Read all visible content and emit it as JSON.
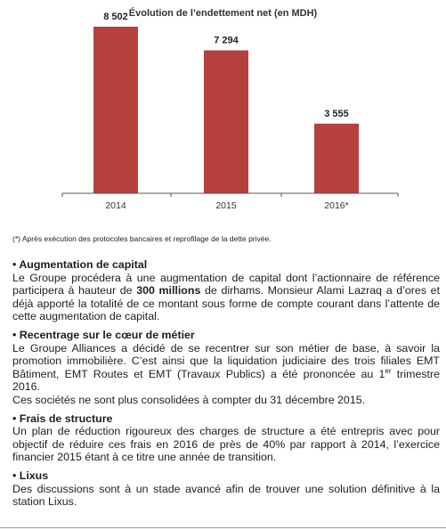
{
  "chart_data": {
    "type": "bar",
    "title": "Évolution de l’endettement net (en MDH)",
    "categories": [
      "2014",
      "2015",
      "2016*"
    ],
    "values": [
      8502,
      7294,
      3555
    ],
    "value_labels": [
      "8 502",
      "7 294",
      "3 555"
    ],
    "ylim": [
      0,
      9000
    ],
    "xlabel": "",
    "ylabel": "",
    "grid": false,
    "bar_color": "#b5403d"
  },
  "footnote": "(*) Après exécution des protocoles bancaires et reprofilage de la dette privée.",
  "sections": [
    {
      "title": "• Augmentation de capital",
      "text_before": "Le Groupe procédera à une augmentation de capital dont l’actionnaire de référence participera à hauteur de ",
      "bold": "300 millions",
      "text_after": " de dirhams. Monsieur Alami Lazraq a d’ores et déjà apporté la totalité de ce montant sous forme de compte courant dans l’attente de cette augmentation de capital."
    },
    {
      "title": "• Recentrage sur le cœur de métier",
      "text_before": "Le Groupe Alliances a décidé de se recentrer sur son métier de base, à savoir la promotion immobilière. C’est ainsi que la liquidation judiciaire des trois filiales EMT Bâtiment, EMT Routes et EMT (Travaux Publics) a été prononcée au 1",
      "sup": "er",
      "text_after": " trimestre 2016.",
      "text_extra": "Ces sociétés ne sont plus consolidées à compter du 31 décembre 2015."
    },
    {
      "title": "• Frais de structure",
      "text": "Un plan de réduction rigoureux des charges de structure a été entrepris avec pour objectif de réduire ces frais en 2016 de près de 40% par rapport à 2014, l’exercice financier 2015 étant à ce titre une année de transition."
    },
    {
      "title": "• Lixus",
      "text": "Des discussions sont à un stade avancé afin de trouver une solution définitive à la station Lixus."
    }
  ]
}
